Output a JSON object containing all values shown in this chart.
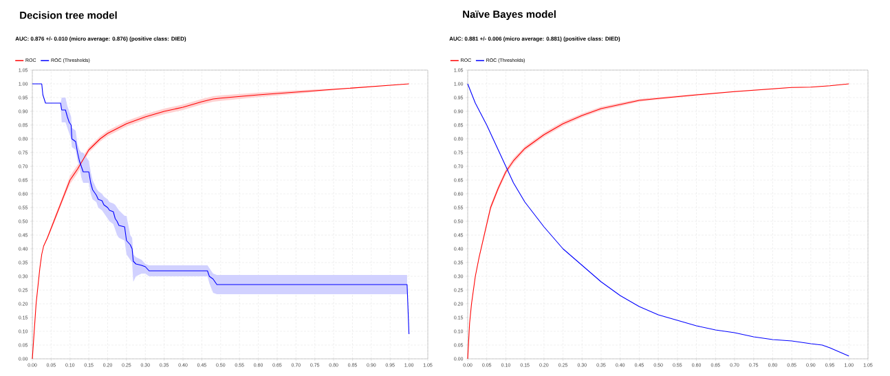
{
  "chart_data": [
    {
      "type": "line",
      "title": "Decision tree model",
      "subtitle": "AUC: 0.876 +/- 0.010 (micro average: 0.876) (positive class: DIED)",
      "grid": true,
      "legend": "top left",
      "xlim": [
        0,
        1.05
      ],
      "ylim": [
        0,
        1.05
      ],
      "xticks": [
        {
          "value": 0,
          "label": "0.00"
        },
        {
          "value": 0.05,
          "label": "0.05"
        },
        {
          "value": 0.1,
          "label": "0.10"
        },
        {
          "value": 0.15,
          "label": "0.15"
        },
        {
          "value": 0.2,
          "label": "0.20"
        },
        {
          "value": 0.25,
          "label": "0.25"
        },
        {
          "value": 0.3,
          "label": "0.30"
        },
        {
          "value": 0.35,
          "label": "0.35"
        },
        {
          "value": 0.4,
          "label": "0.40"
        },
        {
          "value": 0.45,
          "label": "0.45"
        },
        {
          "value": 0.5,
          "label": "0.50"
        },
        {
          "value": 0.55,
          "label": "0.55"
        },
        {
          "value": 0.6,
          "label": "0.60"
        },
        {
          "value": 0.65,
          "label": "0.65"
        },
        {
          "value": 0.7,
          "label": "0.70"
        },
        {
          "value": 0.75,
          "label": "0.75"
        },
        {
          "value": 0.8,
          "label": "0.80"
        },
        {
          "value": 0.85,
          "label": "0.85"
        },
        {
          "value": 0.9,
          "label": "0.90"
        },
        {
          "value": 0.95,
          "label": "0.95"
        },
        {
          "value": 1,
          "label": "1.00"
        },
        {
          "value": 1.05,
          "label": "1.05"
        }
      ],
      "yticks": [
        {
          "value": 0,
          "label": "0.00"
        },
        {
          "value": 0.05,
          "label": "0.05"
        },
        {
          "value": 0.1,
          "label": "0.10"
        },
        {
          "value": 0.15,
          "label": "0.15"
        },
        {
          "value": 0.2,
          "label": "0.20"
        },
        {
          "value": 0.25,
          "label": "0.25"
        },
        {
          "value": 0.3,
          "label": "0.30"
        },
        {
          "value": 0.35,
          "label": "0.35"
        },
        {
          "value": 0.4,
          "label": "0.40"
        },
        {
          "value": 0.45,
          "label": "0.45"
        },
        {
          "value": 0.5,
          "label": "0.50"
        },
        {
          "value": 0.55,
          "label": "0.55"
        },
        {
          "value": 0.6,
          "label": "0.60"
        },
        {
          "value": 0.65,
          "label": "0.65"
        },
        {
          "value": 0.7,
          "label": "0.70"
        },
        {
          "value": 0.75,
          "label": "0.75"
        },
        {
          "value": 0.8,
          "label": "0.80"
        },
        {
          "value": 0.85,
          "label": "0.85"
        },
        {
          "value": 0.9,
          "label": "0.90"
        },
        {
          "value": 0.95,
          "label": "0.95"
        },
        {
          "value": 1,
          "label": "1.00"
        },
        {
          "value": 1.05,
          "label": "1.05"
        }
      ],
      "series": [
        {
          "name": "ROC",
          "color": "#ff0000",
          "x": [
            0,
            0.005,
            0.01,
            0.02,
            0.025,
            0.03,
            0.04,
            0.06,
            0.08,
            0.1,
            0.12,
            0.15,
            0.18,
            0.2,
            0.25,
            0.3,
            0.35,
            0.4,
            0.45,
            0.48,
            0.5,
            0.6,
            0.7,
            0.8,
            0.9,
            1.0
          ],
          "values": [
            0,
            0.1,
            0.2,
            0.33,
            0.38,
            0.41,
            0.44,
            0.51,
            0.58,
            0.65,
            0.69,
            0.76,
            0.8,
            0.82,
            0.855,
            0.88,
            0.9,
            0.915,
            0.935,
            0.945,
            0.948,
            0.96,
            0.97,
            0.98,
            0.99,
            1
          ],
          "upper": [
            0,
            0.1,
            0.2,
            0.33,
            0.38,
            0.41,
            0.445,
            0.52,
            0.59,
            0.665,
            0.705,
            0.77,
            0.81,
            0.83,
            0.865,
            0.89,
            0.91,
            0.925,
            0.945,
            0.955,
            0.958,
            0.968,
            0.976,
            0.983,
            0.99,
            1
          ],
          "lower": [
            0,
            0.1,
            0.2,
            0.33,
            0.38,
            0.41,
            0.435,
            0.5,
            0.57,
            0.635,
            0.675,
            0.75,
            0.79,
            0.81,
            0.845,
            0.87,
            0.89,
            0.905,
            0.925,
            0.935,
            0.938,
            0.952,
            0.964,
            0.977,
            0.99,
            1
          ]
        },
        {
          "name": "ROC (Thresholds)",
          "color": "#0000ff",
          "x": [
            0,
            0.025,
            0.028,
            0.035,
            0.075,
            0.078,
            0.088,
            0.093,
            0.098,
            0.103,
            0.105,
            0.115,
            0.12,
            0.125,
            0.13,
            0.135,
            0.15,
            0.155,
            0.16,
            0.17,
            0.175,
            0.185,
            0.19,
            0.2,
            0.205,
            0.215,
            0.22,
            0.225,
            0.23,
            0.245,
            0.25,
            0.26,
            0.265,
            0.268,
            0.275,
            0.29,
            0.3,
            0.31,
            0.465,
            0.47,
            0.48,
            0.49,
            0.995,
            1.0
          ],
          "values": [
            1,
            1,
            0.96,
            0.93,
            0.93,
            0.905,
            0.905,
            0.88,
            0.86,
            0.85,
            0.8,
            0.79,
            0.75,
            0.72,
            0.7,
            0.68,
            0.68,
            0.64,
            0.615,
            0.595,
            0.58,
            0.575,
            0.56,
            0.55,
            0.54,
            0.535,
            0.51,
            0.5,
            0.485,
            0.48,
            0.43,
            0.415,
            0.4,
            0.355,
            0.345,
            0.34,
            0.335,
            0.32,
            0.32,
            0.3,
            0.29,
            0.27,
            0.27,
            0.09
          ],
          "upper": [
            1,
            1,
            0.96,
            0.93,
            0.93,
            0.95,
            0.95,
            0.92,
            0.9,
            0.88,
            0.84,
            0.83,
            0.78,
            0.76,
            0.75,
            0.75,
            0.72,
            0.68,
            0.65,
            0.62,
            0.61,
            0.6,
            0.59,
            0.58,
            0.57,
            0.565,
            0.56,
            0.55,
            0.54,
            0.52,
            0.52,
            0.45,
            0.44,
            0.38,
            0.37,
            0.36,
            0.345,
            0.34,
            0.34,
            0.33,
            0.31,
            0.305,
            0.305,
            null
          ],
          "lower": [
            1,
            1,
            0.96,
            0.93,
            0.93,
            0.86,
            0.86,
            0.84,
            0.82,
            0.8,
            0.77,
            0.76,
            0.72,
            0.7,
            0.66,
            0.64,
            0.64,
            0.6,
            0.58,
            0.57,
            0.55,
            0.54,
            0.53,
            0.51,
            0.5,
            0.49,
            0.47,
            0.45,
            0.44,
            0.43,
            0.38,
            0.36,
            0.35,
            0.28,
            0.3,
            0.31,
            0.31,
            0.3,
            0.3,
            0.275,
            0.24,
            0.235,
            0.235,
            null
          ]
        }
      ]
    },
    {
      "type": "line",
      "title": "Naïve Bayes model",
      "subtitle": "AUC: 0.881 +/- 0.006 (micro average: 0.881) (positive class: DIED)",
      "grid": true,
      "legend": "top left",
      "xlim": [
        0,
        1.05
      ],
      "ylim": [
        0,
        1.05
      ],
      "xticks": [
        {
          "value": 0,
          "label": "0.00"
        },
        {
          "value": 0.05,
          "label": "0.05"
        },
        {
          "value": 0.1,
          "label": "0.10"
        },
        {
          "value": 0.15,
          "label": "0.15"
        },
        {
          "value": 0.2,
          "label": "0.20"
        },
        {
          "value": 0.25,
          "label": "0.25"
        },
        {
          "value": 0.3,
          "label": "0.30"
        },
        {
          "value": 0.35,
          "label": "0.35"
        },
        {
          "value": 0.4,
          "label": "0.40"
        },
        {
          "value": 0.45,
          "label": "0.45"
        },
        {
          "value": 0.5,
          "label": "0.50"
        },
        {
          "value": 0.55,
          "label": "0.55"
        },
        {
          "value": 0.6,
          "label": "0.60"
        },
        {
          "value": 0.65,
          "label": "0.65"
        },
        {
          "value": 0.7,
          "label": "0.70"
        },
        {
          "value": 0.75,
          "label": "0.75"
        },
        {
          "value": 0.8,
          "label": "0.80"
        },
        {
          "value": 0.85,
          "label": "0.85"
        },
        {
          "value": 0.9,
          "label": "0.90"
        },
        {
          "value": 0.95,
          "label": "0.95"
        },
        {
          "value": 1,
          "label": "1.00"
        },
        {
          "value": 1.05,
          "label": "1.05"
        }
      ],
      "yticks": [
        {
          "value": 0,
          "label": "0.00"
        },
        {
          "value": 0.05,
          "label": "0.05"
        },
        {
          "value": 0.1,
          "label": "0.10"
        },
        {
          "value": 0.15,
          "label": "0.15"
        },
        {
          "value": 0.2,
          "label": "0.20"
        },
        {
          "value": 0.25,
          "label": "0.25"
        },
        {
          "value": 0.3,
          "label": "0.30"
        },
        {
          "value": 0.35,
          "label": "0.35"
        },
        {
          "value": 0.4,
          "label": "0.40"
        },
        {
          "value": 0.45,
          "label": "0.45"
        },
        {
          "value": 0.5,
          "label": "0.50"
        },
        {
          "value": 0.55,
          "label": "0.55"
        },
        {
          "value": 0.6,
          "label": "0.60"
        },
        {
          "value": 0.65,
          "label": "0.65"
        },
        {
          "value": 0.7,
          "label": "0.70"
        },
        {
          "value": 0.75,
          "label": "0.75"
        },
        {
          "value": 0.8,
          "label": "0.80"
        },
        {
          "value": 0.85,
          "label": "0.85"
        },
        {
          "value": 0.9,
          "label": "0.90"
        },
        {
          "value": 0.95,
          "label": "0.95"
        },
        {
          "value": 1,
          "label": "1.00"
        },
        {
          "value": 1.05,
          "label": "1.05"
        }
      ],
      "series": [
        {
          "name": "ROC",
          "color": "#ff0000",
          "x": [
            0,
            0.005,
            0.01,
            0.02,
            0.03,
            0.04,
            0.05,
            0.06,
            0.08,
            0.1,
            0.12,
            0.15,
            0.2,
            0.25,
            0.3,
            0.35,
            0.4,
            0.45,
            0.5,
            0.6,
            0.7,
            0.8,
            0.85,
            0.9,
            0.95,
            1.0
          ],
          "values": [
            0,
            0.13,
            0.2,
            0.3,
            0.37,
            0.43,
            0.49,
            0.55,
            0.62,
            0.68,
            0.72,
            0.765,
            0.815,
            0.855,
            0.885,
            0.91,
            0.925,
            0.94,
            0.947,
            0.96,
            0.972,
            0.982,
            0.987,
            0.988,
            0.993,
            1
          ],
          "upper": [
            0,
            0.13,
            0.2,
            0.3,
            0.375,
            0.437,
            0.5,
            0.56,
            0.63,
            0.69,
            0.73,
            0.773,
            0.823,
            0.863,
            0.892,
            0.917,
            0.931,
            0.945,
            0.951,
            0.963,
            0.974,
            0.984,
            0.988,
            0.989,
            0.994,
            1
          ],
          "lower": [
            0,
            0.13,
            0.2,
            0.3,
            0.365,
            0.423,
            0.48,
            0.54,
            0.61,
            0.67,
            0.71,
            0.757,
            0.807,
            0.847,
            0.878,
            0.903,
            0.919,
            0.935,
            0.943,
            0.957,
            0.97,
            0.98,
            0.986,
            0.987,
            0.992,
            1
          ]
        },
        {
          "name": "ROC (Thresholds)",
          "color": "#0000ff",
          "x": [
            0,
            0.02,
            0.05,
            0.08,
            0.1,
            0.12,
            0.15,
            0.2,
            0.25,
            0.3,
            0.35,
            0.4,
            0.45,
            0.5,
            0.55,
            0.6,
            0.65,
            0.7,
            0.75,
            0.8,
            0.85,
            0.9,
            0.93,
            0.95,
            1.0
          ],
          "values": [
            1,
            0.93,
            0.85,
            0.76,
            0.7,
            0.64,
            0.57,
            0.48,
            0.4,
            0.34,
            0.28,
            0.23,
            0.19,
            0.16,
            0.14,
            0.12,
            0.105,
            0.095,
            0.08,
            0.07,
            0.065,
            0.055,
            0.05,
            0.04,
            0.01
          ]
        }
      ]
    }
  ]
}
